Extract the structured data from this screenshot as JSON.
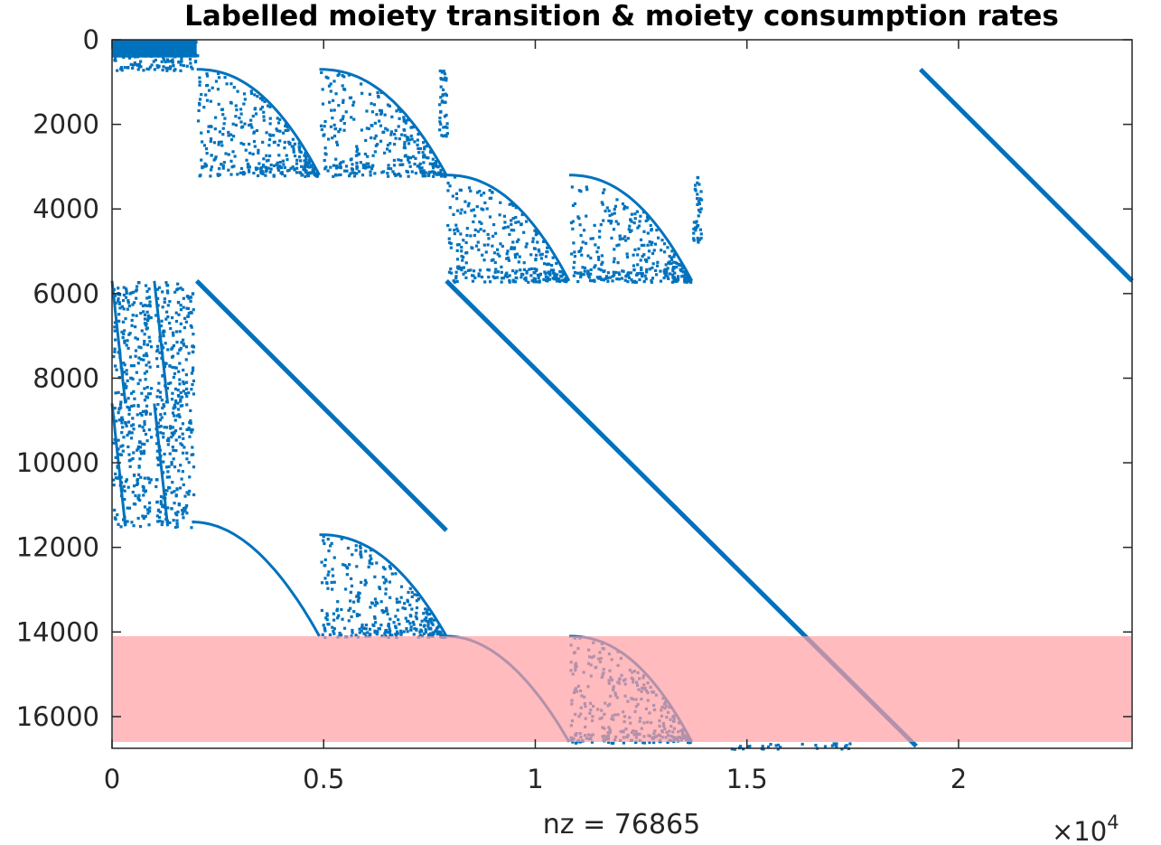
{
  "chart_data": {
    "type": "scatter",
    "subtype": "spy sparsity pattern",
    "title": "Labelled moiety transition & moiety consumption rates",
    "xlabel": "nz = 76865",
    "ylabel": "",
    "x_exponent_label": "×10",
    "x_exponent_power": "4",
    "xlim": [
      0,
      24100
    ],
    "ylim": [
      0,
      16750
    ],
    "y_reversed": true,
    "grid": false,
    "marker_color": "#0072bd",
    "highlight_color": "#ff9ea3",
    "highlight_band": {
      "y_from": 14100,
      "y_to": 16600
    },
    "x_ticks": [
      {
        "value": 0,
        "label": "0"
      },
      {
        "value": 5000,
        "label": "0.5"
      },
      {
        "value": 10000,
        "label": "1"
      },
      {
        "value": 15000,
        "label": "1.5"
      },
      {
        "value": 20000,
        "label": "2"
      }
    ],
    "y_ticks": [
      {
        "value": 0,
        "label": "0"
      },
      {
        "value": 2000,
        "label": "2000"
      },
      {
        "value": 4000,
        "label": "4000"
      },
      {
        "value": 6000,
        "label": "6000"
      },
      {
        "value": 8000,
        "label": "8000"
      },
      {
        "value": 10000,
        "label": "10000"
      },
      {
        "value": 12000,
        "label": "12000"
      },
      {
        "value": 14000,
        "label": "14000"
      },
      {
        "value": 16000,
        "label": "16000"
      }
    ],
    "series": [
      {
        "shape": "diagonal-line",
        "x": [
          19100,
          24100
        ],
        "y": [
          700,
          5700
        ]
      },
      {
        "shape": "diagonal-line",
        "x": [
          2000,
          7900
        ],
        "y": [
          5700,
          11600
        ]
      },
      {
        "shape": "diagonal-line",
        "x": [
          7900,
          19000
        ],
        "y": [
          5700,
          16700
        ]
      },
      {
        "shape": "dense-block",
        "x_range": [
          0,
          2000
        ],
        "y_range": [
          0,
          700
        ]
      },
      {
        "shape": "triangular-block",
        "x_range": [
          2000,
          4900
        ],
        "y_range": [
          700,
          3200
        ]
      },
      {
        "shape": "triangular-block",
        "x_range": [
          4900,
          7900
        ],
        "y_range": [
          700,
          3200
        ]
      },
      {
        "shape": "vertical-strip",
        "x_range": [
          7700,
          7900
        ],
        "y_range": [
          700,
          2300
        ]
      },
      {
        "shape": "triangular-block",
        "x_range": [
          7900,
          10800
        ],
        "y_range": [
          3200,
          5700
        ]
      },
      {
        "shape": "triangular-block",
        "x_range": [
          10800,
          13700
        ],
        "y_range": [
          3200,
          5700
        ]
      },
      {
        "shape": "vertical-strip",
        "x_range": [
          13700,
          13900
        ],
        "y_range": [
          3200,
          4800
        ]
      },
      {
        "shape": "column-blocks",
        "x_range": [
          0,
          2000
        ],
        "y_range": [
          5700,
          8600
        ]
      },
      {
        "shape": "column-blocks",
        "x_range": [
          0,
          2000
        ],
        "y_range": [
          8600,
          11500
        ]
      },
      {
        "shape": "tail-curve",
        "x_range": [
          1900,
          4900
        ],
        "y_range": [
          11400,
          14100
        ]
      },
      {
        "shape": "triangular-block",
        "x_range": [
          4900,
          7900
        ],
        "y_range": [
          11700,
          14100
        ]
      },
      {
        "shape": "tail-curve",
        "x_range": [
          7900,
          10800
        ],
        "y_range": [
          14100,
          16600
        ]
      },
      {
        "shape": "triangular-block",
        "x_range": [
          10800,
          13700
        ],
        "y_range": [
          14100,
          16600
        ]
      },
      {
        "shape": "sparse-row",
        "x_range": [
          14100,
          17700
        ],
        "y_range": [
          16600,
          16700
        ]
      }
    ]
  }
}
